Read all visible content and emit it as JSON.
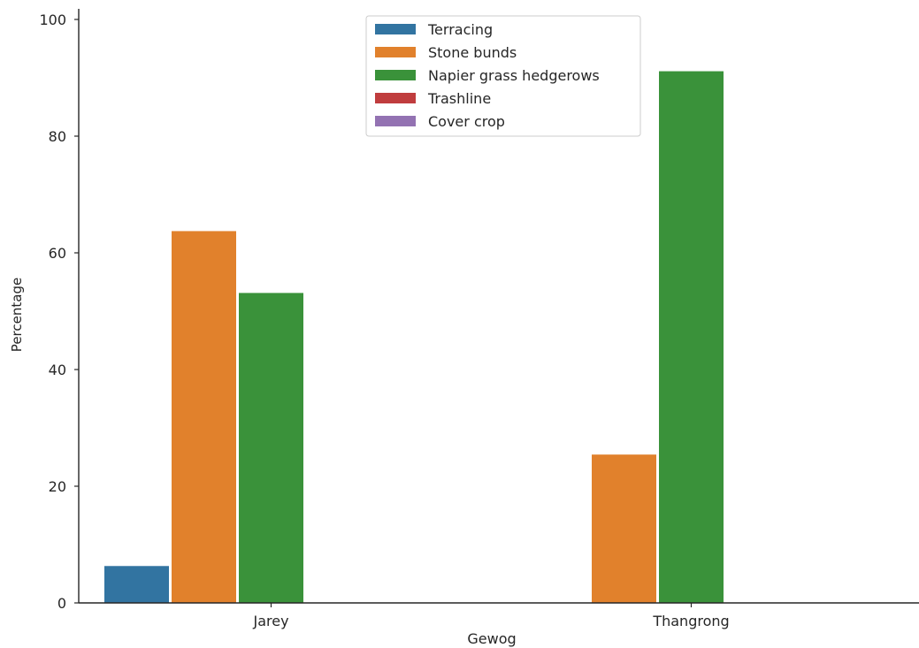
{
  "chart_data": {
    "type": "bar",
    "title": "",
    "xlabel": "Gewog",
    "ylabel": "Percentage",
    "categories": [
      "Jarey",
      "Thangrong"
    ],
    "ylim": [
      0,
      102
    ],
    "yticks": [
      0,
      20,
      40,
      60,
      80,
      100
    ],
    "grid": false,
    "legend_position": "top-center",
    "series": [
      {
        "name": "Terracing",
        "color": "#3274a1",
        "values": [
          6.4,
          0
        ]
      },
      {
        "name": "Stone bunds",
        "color": "#e1812c",
        "values": [
          63.8,
          25.5
        ]
      },
      {
        "name": "Napier grass hedgerows",
        "color": "#3a923a",
        "values": [
          53.2,
          91.2
        ]
      },
      {
        "name": "Trashline",
        "color": "#c03d3e",
        "values": [
          0,
          0
        ]
      },
      {
        "name": "Cover crop",
        "color": "#9372b2",
        "values": [
          0,
          0
        ]
      }
    ]
  }
}
